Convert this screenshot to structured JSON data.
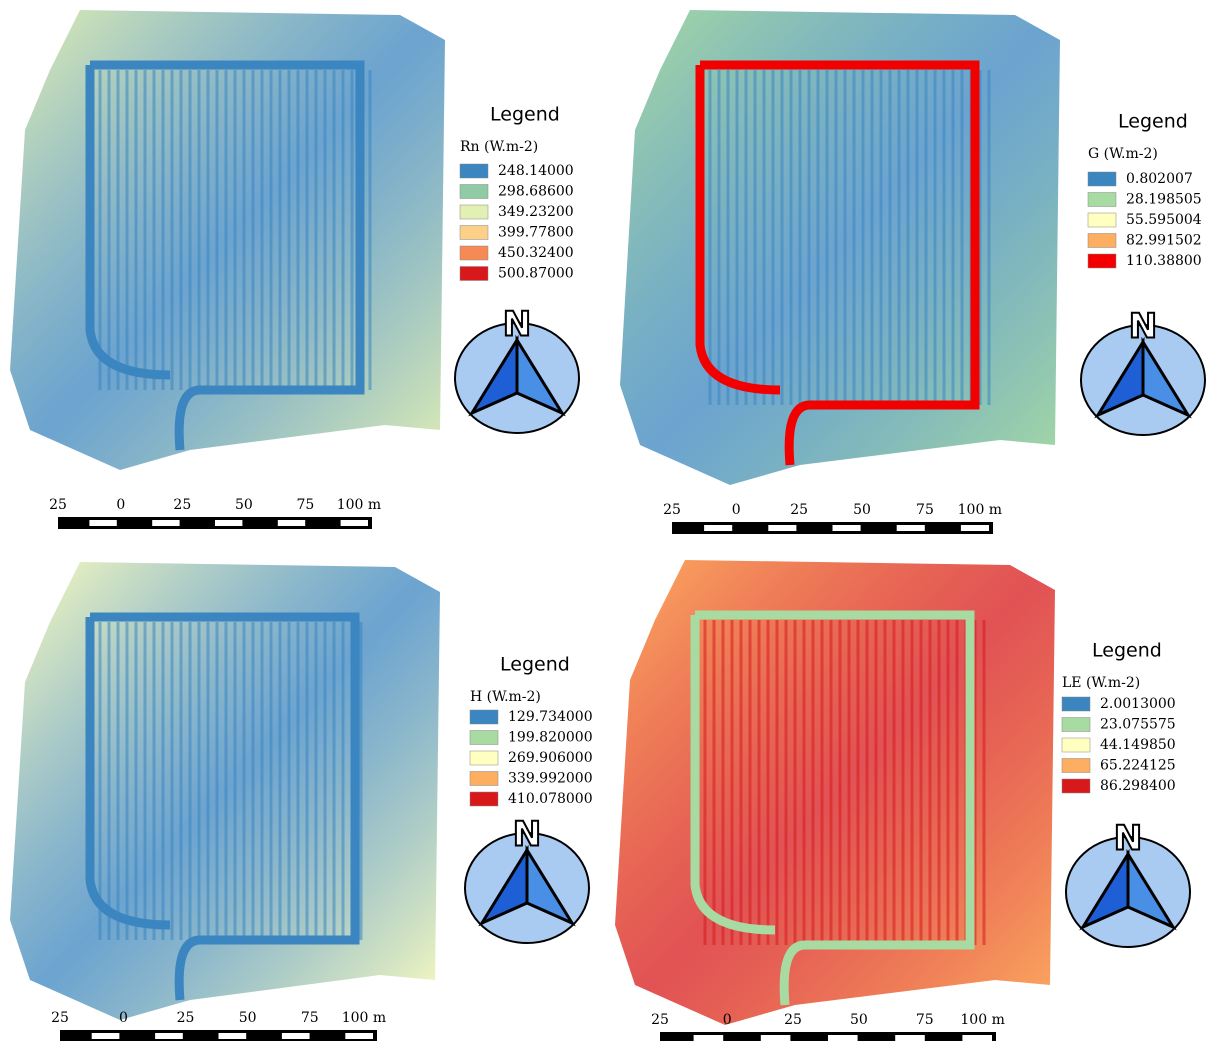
{
  "panels": [
    {
      "legend_title": "Legend",
      "unit": "Rn (W.m-2)",
      "north": "N",
      "entries": [
        {
          "label": "248.14000",
          "color": "#3b85c0"
        },
        {
          "label": "298.68600",
          "color": "#8fcca5"
        },
        {
          "label": "349.23200",
          "color": "#e3f0b4"
        },
        {
          "label": "399.77800",
          "color": "#fdd08a"
        },
        {
          "label": "450.32400",
          "color": "#f58a54"
        },
        {
          "label": "500.87000",
          "color": "#d7191c"
        }
      ],
      "scale_labels": [
        "25",
        "0",
        "25",
        "50",
        "75",
        "100 m"
      ]
    },
    {
      "legend_title": "Legend",
      "unit": "G (W.m-2)",
      "north": "N",
      "entries": [
        {
          "label": "0.802007",
          "color": "#3b85c0"
        },
        {
          "label": "28.198505",
          "color": "#a8dba2"
        },
        {
          "label": "55.595004",
          "color": "#ffffbf"
        },
        {
          "label": "82.991502",
          "color": "#fdae61"
        },
        {
          "label": "110.38800",
          "color": "#f20000"
        }
      ],
      "scale_labels": [
        "25",
        "0",
        "25",
        "50",
        "75",
        "100 m"
      ]
    },
    {
      "legend_title": "Legend",
      "unit": "H (W.m-2)",
      "north": "N",
      "entries": [
        {
          "label": "129.734000",
          "color": "#3b85c0"
        },
        {
          "label": "199.820000",
          "color": "#a8dba2"
        },
        {
          "label": "269.906000",
          "color": "#ffffbf"
        },
        {
          "label": "339.992000",
          "color": "#fdae61"
        },
        {
          "label": "410.078000",
          "color": "#d7191c"
        }
      ],
      "scale_labels": [
        "25",
        "0",
        "25",
        "50",
        "75",
        "100 m"
      ]
    },
    {
      "legend_title": "Legend",
      "unit": "LE (W.m-2)",
      "north": "N",
      "entries": [
        {
          "label": "2.0013000",
          "color": "#3b85c0"
        },
        {
          "label": "23.075575",
          "color": "#a8dba2"
        },
        {
          "label": "44.149850",
          "color": "#ffffbf"
        },
        {
          "label": "65.224125",
          "color": "#fdae61"
        },
        {
          "label": "86.298400",
          "color": "#d7191c"
        }
      ],
      "scale_labels": [
        "25",
        "0",
        "25",
        "50",
        "75",
        "100 m"
      ]
    }
  ]
}
